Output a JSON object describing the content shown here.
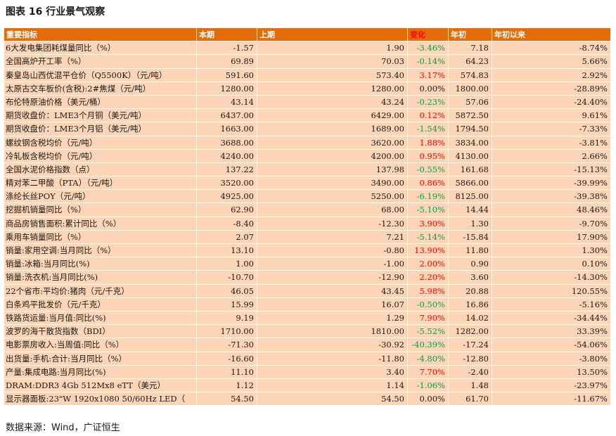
{
  "title": "图表 16  行业景气观察",
  "header": {
    "name": "重要指标",
    "current": "本期",
    "previous": "上期",
    "change": "变化",
    "year_start": "年初",
    "ytd": "年初以来"
  },
  "rows": [
    {
      "name": "6大发电集团耗煤量同比（%）",
      "current": "-1.57",
      "previous": "1.90",
      "change": "-3.46%",
      "year_start": "7.18",
      "ytd": "-8.74%"
    },
    {
      "name": "全国高炉开工率（%）",
      "current": "69.89",
      "previous": "70.03",
      "change": "-0.14%",
      "year_start": "64.23",
      "ytd": "5.66%"
    },
    {
      "name": "秦皇岛山西优混平仓价（Q5500K）（元/吨）",
      "current": "591.60",
      "previous": "573.40",
      "change": "3.17%",
      "year_start": "574.83",
      "ytd": "2.92%"
    },
    {
      "name": "太原古交车板价(含税):2#焦煤（元/吨）",
      "current": "1280.00",
      "previous": "1280.00",
      "change": "0.00%",
      "year_start": "1800.00",
      "ytd": "-28.89%"
    },
    {
      "name": "布伦特原油价格（美元/桶）",
      "current": "43.14",
      "previous": "43.24",
      "change": "-0.23%",
      "year_start": "57.06",
      "ytd": "-24.40%"
    },
    {
      "name": "期货收盘价：LME3个月铜（美元/吨）",
      "current": "6437.00",
      "previous": "6429.00",
      "change": "0.12%",
      "year_start": "5872.50",
      "ytd": "9.61%"
    },
    {
      "name": "期货收盘价：LME3个月铝（美元/吨）",
      "current": "1663.00",
      "previous": "1689.00",
      "change": "-1.54%",
      "year_start": "1794.50",
      "ytd": "-7.33%"
    },
    {
      "name": "螺纹钢含税均价（元/吨）",
      "current": "3688.00",
      "previous": "3620.00",
      "change": "1.88%",
      "year_start": "3834.00",
      "ytd": "-3.81%"
    },
    {
      "name": "冷轧板含税均价（元/吨）",
      "current": "4240.00",
      "previous": "4200.00",
      "change": "0.95%",
      "year_start": "4130.00",
      "ytd": "2.66%"
    },
    {
      "name": "全国水泥价格指数（点）",
      "current": "137.22",
      "previous": "137.98",
      "change": "-0.55%",
      "year_start": "161.68",
      "ytd": "-15.13%"
    },
    {
      "name": "精对苯二甲酸（PTA）（元/吨）",
      "current": "3520.00",
      "previous": "3490.00",
      "change": "0.86%",
      "year_start": "5866.00",
      "ytd": "-39.99%"
    },
    {
      "name": "涤纶长丝POY（元/吨）",
      "current": "4925.00",
      "previous": "5250.00",
      "change": "-6.19%",
      "year_start": "8125.00",
      "ytd": "-39.38%"
    },
    {
      "name": "挖掘机销量同比（%）",
      "current": "62.90",
      "previous": "68.00",
      "change": "-5.10%",
      "year_start": "14.44",
      "ytd": "48.46%"
    },
    {
      "name": "商品房销售面积:累计同比（%）",
      "current": "-8.40",
      "previous": "-12.30",
      "change": "3.90%",
      "year_start": "1.30",
      "ytd": "-9.70%"
    },
    {
      "name": "乘用车销量同比（%）",
      "current": "2.07",
      "previous": "7.21",
      "change": "-5.14%",
      "year_start": "-15.84",
      "ytd": "17.90%"
    },
    {
      "name": "销量:家用空调:当月同比（%）",
      "current": "13.10",
      "previous": "-0.80",
      "change": "13.90%",
      "year_start": "11.80",
      "ytd": "1.30%"
    },
    {
      "name": "销量:冰箱:当月同比(%)",
      "current": "1.00",
      "previous": "-1.00",
      "change": "2.00%",
      "year_start": "0.90",
      "ytd": "0.10%"
    },
    {
      "name": "销量:洗衣机:当月同比(%)",
      "current": "-10.70",
      "previous": "-12.90",
      "change": "2.20%",
      "year_start": "3.60",
      "ytd": "-14.30%"
    },
    {
      "name": "22个省市:平均价:猪肉（元/千克）",
      "current": "46.05",
      "previous": "43.45",
      "change": "5.98%",
      "year_start": "20.88",
      "ytd": "120.55%"
    },
    {
      "name": "白条鸡平批发价（元/千克）",
      "current": "15.99",
      "previous": "16.07",
      "change": "-0.50%",
      "year_start": "16.86",
      "ytd": "-5.16%"
    },
    {
      "name": "铁路货运量:当月值:同比(%)",
      "current": "9.19",
      "previous": "1.29",
      "change": "7.90%",
      "year_start": "14.02",
      "ytd": "-34.44%"
    },
    {
      "name": "波罗的海干散货指数（BDI）",
      "current": "1710.00",
      "previous": "1810.00",
      "change": "-5.52%",
      "year_start": "1282.00",
      "ytd": "33.39%"
    },
    {
      "name": "电影票房收入:当周值:同比（%）",
      "current": "-71.30",
      "previous": "-30.92",
      "change": "-40.39%",
      "year_start": "-17.24",
      "ytd": "-54.06%"
    },
    {
      "name": "出货量:手机:合计:当月同比（%）",
      "current": "-16.60",
      "previous": "-11.80",
      "change": "-4.80%",
      "year_start": "-12.80",
      "ytd": "-3.80%"
    },
    {
      "name": "产量:集成电路:当月同比(%)",
      "current": "11.10",
      "previous": "3.40",
      "change": "7.70%",
      "year_start": "-2.40",
      "ytd": "13.50%"
    },
    {
      "name": "DRAM:DDR3 4Gb 512Mx8 eTT（美元）",
      "current": "1.12",
      "previous": "1.14",
      "change": "-1.06%",
      "year_start": "1.48",
      "ytd": "-23.97%"
    },
    {
      "name": "显示器面板:23\"W 1920x1080 50/60Hz LED（",
      "current": "54.50",
      "previous": "54.50",
      "change": "0.00%",
      "year_start": "61.70",
      "ytd": "-11.67%"
    }
  ],
  "source": "数据来源：Wind，广证恒生"
}
